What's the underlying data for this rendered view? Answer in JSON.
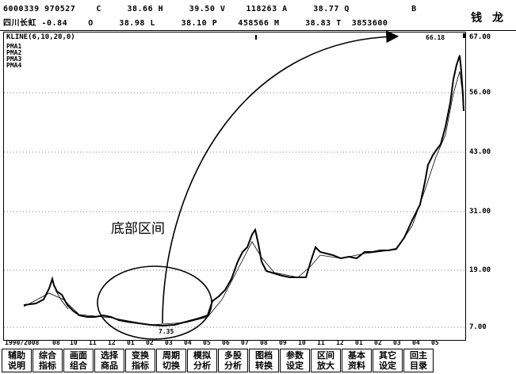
{
  "header": {
    "row1": "6000339 970527    C     38.66 H     39.50 V    118263 A     38.77 Q            B",
    "row2": "四川长虹 -0.84    O     38.98 L     38.10 P    458566 M     38.83 T  3853600",
    "brand": "钱 龙"
  },
  "chart": {
    "kline_label": "KLINE",
    "kline_params": "(6,10,20,0)",
    "ma_labels": [
      "PMA1",
      "PMA2",
      "PMA3",
      "PMA4"
    ],
    "peak_label": "66.18",
    "low_label": "7.35",
    "y_labels": [
      "67.00",
      "56.00",
      "43.00",
      "31.00",
      "19.00",
      "7.00"
    ],
    "x_labels": [
      "1990/2008",
      "08",
      "10",
      "11",
      "12",
      "01",
      "02",
      "03",
      "04",
      "05",
      "06",
      "07",
      "08",
      "09",
      "10",
      "11",
      "12",
      "01",
      "02",
      "03",
      "04",
      "05"
    ],
    "annotation": "底部区间"
  },
  "buttons": [
    {
      "l1": "辅助",
      "l2": "说明"
    },
    {
      "l1": "综合",
      "l2": "指标"
    },
    {
      "l1": "画面",
      "l2": "组合"
    },
    {
      "l1": "选择",
      "l2": "商品"
    },
    {
      "l1": "变换",
      "l2": "指标"
    },
    {
      "l1": "周期",
      "l2": "切换"
    },
    {
      "l1": "模拟",
      "l2": "分析"
    },
    {
      "l1": "多股",
      "l2": "分析"
    },
    {
      "l1": "图档",
      "l2": "转换"
    },
    {
      "l1": "参数",
      "l2": "设定"
    },
    {
      "l1": "区间",
      "l2": "放大"
    },
    {
      "l1": "基本",
      "l2": "资料"
    },
    {
      "l1": "其它",
      "l2": "设定"
    },
    {
      "l1": "回主",
      "l2": "目录"
    }
  ]
}
